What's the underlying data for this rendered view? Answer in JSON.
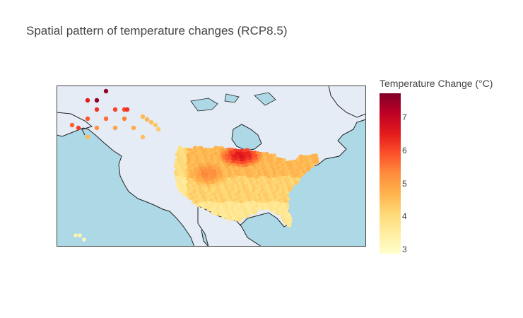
{
  "title": "Spatial pattern of temperature changes (RCP8.5)",
  "colorbar": {
    "title": "Temperature Change (°C)",
    "ticks": [
      "7",
      "6",
      "5",
      "4",
      "3"
    ],
    "min": 2.9,
    "max": 7.7,
    "colorscale": "YlOrRd"
  },
  "colors": {
    "ocean": "#add8e6",
    "land": "#e5ecf6",
    "coast": "#222222"
  },
  "map": {
    "projection": "albers-usa-like",
    "lon_range": [
      -170,
      -50
    ],
    "lat_range": [
      17,
      75
    ]
  },
  "chart_data": {
    "type": "scatter",
    "title": "Spatial pattern of temperature changes (RCP8.5)",
    "colorbar_label": "Temperature Change (°C)",
    "regions": [
      {
        "region": "Alaska",
        "points": [
          {
            "x": 1,
            "y": 1,
            "value": 7.6
          },
          {
            "x": 2,
            "y": 0,
            "value": 7.5
          },
          {
            "x": 0,
            "y": 1,
            "value": 6.5
          },
          {
            "x": 1,
            "y": 2,
            "value": 6.2
          },
          {
            "x": 3,
            "y": 2,
            "value": 6.0
          },
          {
            "x": 2,
            "y": 3,
            "value": 5.6
          },
          {
            "x": 0,
            "y": 3,
            "value": 5.8
          },
          {
            "x": 1,
            "y": 4,
            "value": 5.2
          },
          {
            "x": 3,
            "y": 4,
            "value": 5.0
          },
          {
            "x": 4,
            "y": 3,
            "value": 5.4
          },
          {
            "x": -1,
            "y": 4,
            "value": 6.1
          },
          {
            "x": 0,
            "y": 5,
            "value": 4.6
          },
          {
            "x": 5,
            "y": 4,
            "value": 4.8
          },
          {
            "x": 6,
            "y": 5,
            "value": 4.5
          },
          {
            "x": 4,
            "y": 2,
            "value": 6.0
          }
        ]
      },
      {
        "region": "Hawaii",
        "points": [
          {
            "x": 0,
            "y": 0,
            "value": 3.3
          },
          {
            "x": 1,
            "y": 0,
            "value": 3.2
          },
          {
            "x": 2,
            "y": 1,
            "value": 3.1
          }
        ]
      },
      {
        "region": "CONUS",
        "pattern": "warmest in northern plains (~6.5), cooler on Pacific coast and Gulf coast (~3.5-4.5)"
      }
    ],
    "range": [
      2.9,
      7.7
    ]
  }
}
